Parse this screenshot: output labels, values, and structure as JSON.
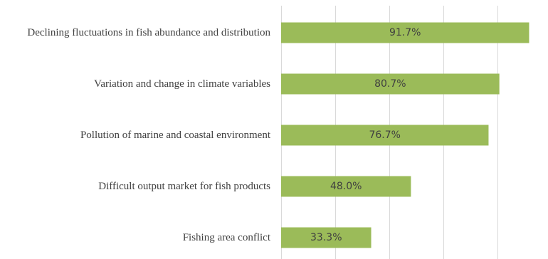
{
  "chart_data": {
    "type": "bar",
    "orientation": "horizontal",
    "categories": [
      "Declining fluctuations in fish abundance and distribution",
      "Variation and change in climate variables",
      "Pollution of marine and coastal environment",
      "Difficult output market for fish products",
      "Fishing area conflict"
    ],
    "values": [
      91.7,
      80.7,
      76.7,
      48.0,
      33.3
    ],
    "data_labels": [
      "91.7%",
      "80.7%",
      "76.7%",
      "48.0%",
      "33.3%"
    ],
    "title": "",
    "xlabel": "",
    "ylabel": "",
    "xlim": [
      0,
      100
    ],
    "grid": true,
    "legend": "none",
    "bar_color": "#9bbb59",
    "gridline_color": "#d9d9d9",
    "text_color": "#404040"
  }
}
